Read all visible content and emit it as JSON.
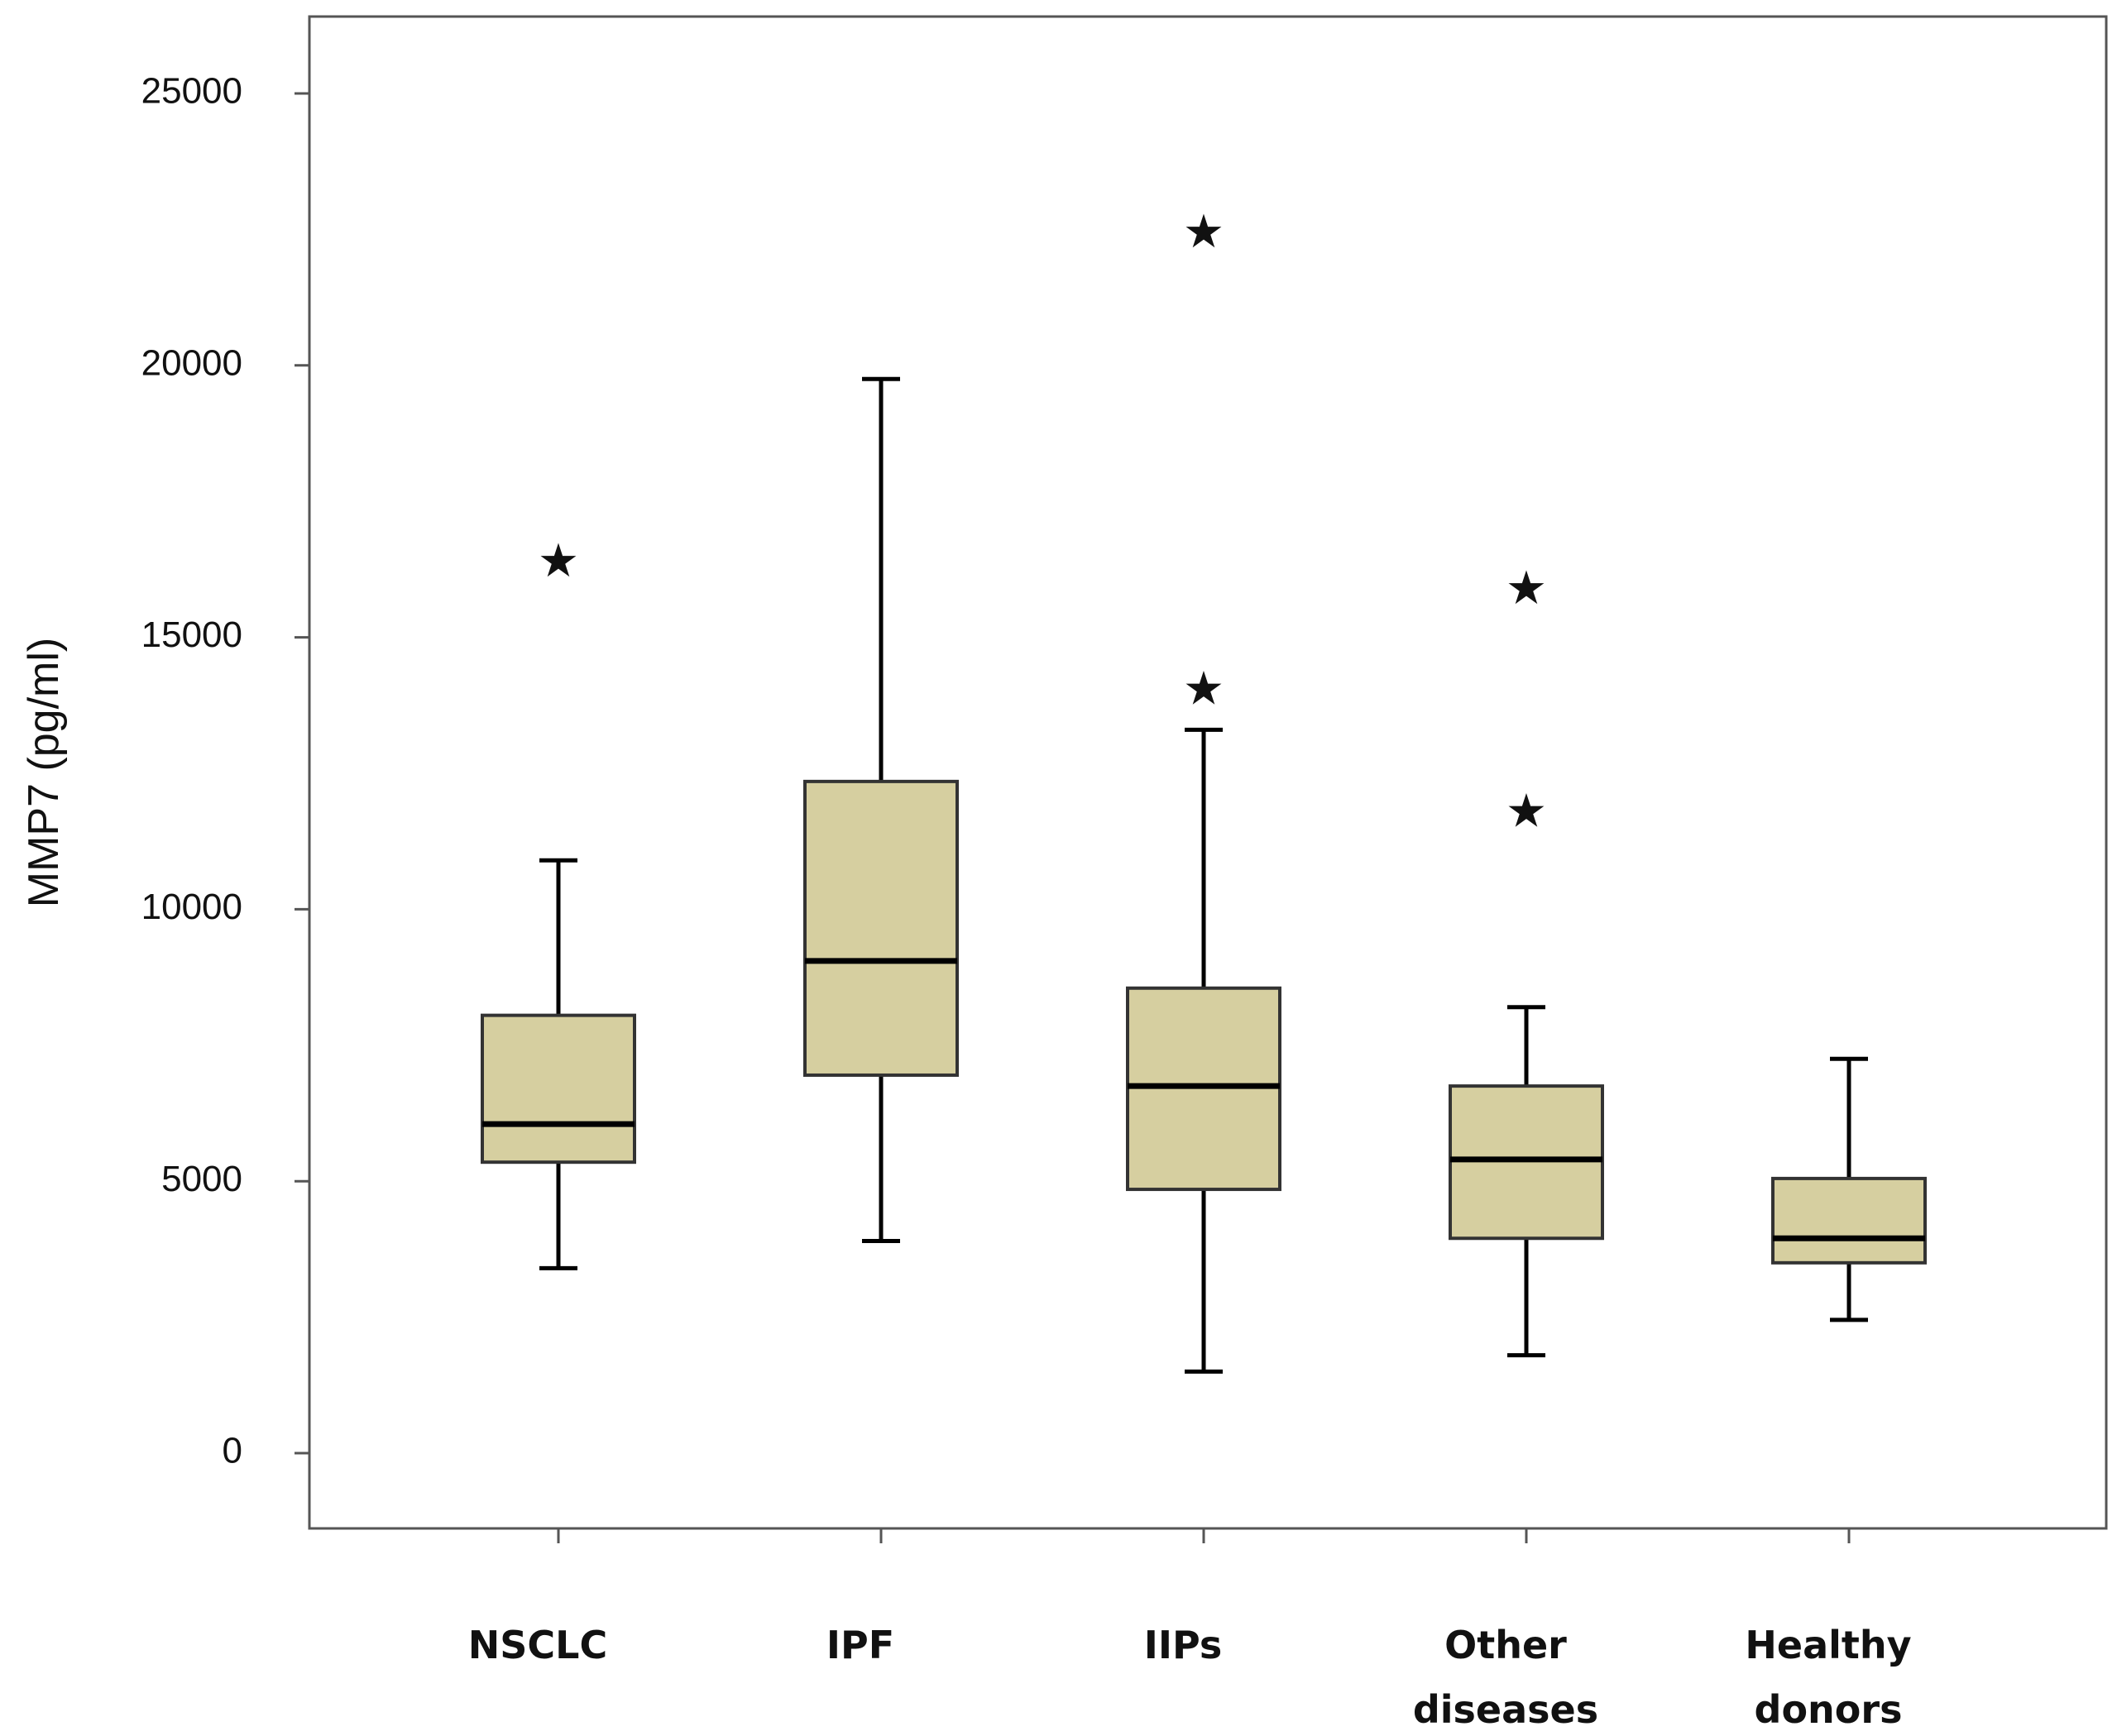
{
  "chart_data": {
    "type": "box",
    "title": "",
    "xlabel": "",
    "ylabel": "MMP7 (pg/ml)",
    "ylim": [
      -1400,
      26400
    ],
    "yticks": [
      0,
      5000,
      10000,
      15000,
      20000,
      25000
    ],
    "ytick_labels": [
      "0",
      "5000",
      "10000",
      "15000",
      "20000",
      "25000"
    ],
    "grid": false,
    "legend": "none",
    "box_color": "#d6cfa0",
    "line_color": "#000000",
    "categories": [
      {
        "label_lines": [
          "NSCLC"
        ]
      },
      {
        "label_lines": [
          "IPF"
        ]
      },
      {
        "label_lines": [
          "IIPs"
        ]
      },
      {
        "label_lines": [
          "Other",
          "diseases"
        ]
      },
      {
        "label_lines": [
          "Healthy",
          "donors"
        ]
      }
    ],
    "boxes": [
      {
        "category": "NSCLC",
        "whisker_low": 3400,
        "q1": 5350,
        "median": 6050,
        "q3": 8050,
        "whisker_high": 10900,
        "outliers": [
          16400
        ]
      },
      {
        "category": "IPF",
        "whisker_low": 3900,
        "q1": 6950,
        "median": 9050,
        "q3": 12350,
        "whisker_high": 19750,
        "outliers": []
      },
      {
        "category": "IIPs",
        "whisker_low": 1500,
        "q1": 4850,
        "median": 6750,
        "q3": 8550,
        "whisker_high": 13300,
        "outliers": [
          14050,
          22450
        ]
      },
      {
        "category": "Other diseases",
        "whisker_low": 1800,
        "q1": 3950,
        "median": 5400,
        "q3": 6750,
        "whisker_high": 8200,
        "outliers": [
          11800,
          15900
        ]
      },
      {
        "category": "Healthy donors",
        "whisker_low": 2450,
        "q1": 3500,
        "median": 3950,
        "q3": 5050,
        "whisker_high": 7250,
        "outliers": []
      }
    ]
  }
}
